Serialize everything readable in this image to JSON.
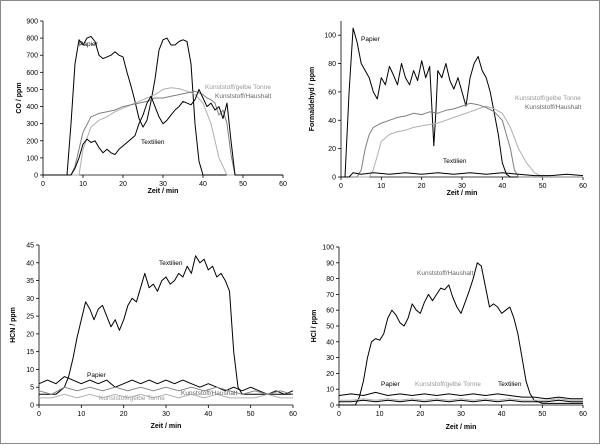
{
  "chart_data": [
    {
      "type": "line",
      "xlabel": "Zeit / min",
      "ylabel": "CO / ppm",
      "xlim": [
        0,
        60
      ],
      "ylim": [
        0,
        900
      ],
      "xticks": [
        0,
        10,
        20,
        30,
        40,
        50,
        60
      ],
      "yticks": [
        0,
        100,
        200,
        300,
        400,
        500,
        600,
        700,
        800,
        900
      ],
      "series": [
        {
          "name": "Papier",
          "color": "#000000",
          "x": [
            0,
            6,
            7,
            8,
            9,
            10,
            11,
            12,
            13,
            14,
            15,
            16,
            17,
            18,
            19,
            20,
            21,
            22,
            23,
            24,
            25,
            26,
            27,
            28,
            29,
            30,
            31,
            32,
            33,
            34,
            35,
            36,
            37,
            38,
            39,
            40,
            60
          ],
          "y": [
            0,
            0,
            300,
            650,
            790,
            760,
            800,
            810,
            780,
            700,
            680,
            690,
            700,
            720,
            700,
            690,
            600,
            520,
            430,
            330,
            280,
            320,
            430,
            560,
            730,
            790,
            800,
            760,
            760,
            780,
            790,
            780,
            650,
            300,
            80,
            0,
            0
          ]
        },
        {
          "name": "Kunststoff/gelbe Tonne",
          "color": "#b0b0b0",
          "x": [
            0,
            9,
            10,
            12,
            14,
            16,
            18,
            20,
            22,
            24,
            26,
            28,
            30,
            32,
            34,
            36,
            38,
            40,
            42,
            44,
            46,
            60
          ],
          "y": [
            0,
            0,
            150,
            280,
            320,
            340,
            370,
            390,
            410,
            430,
            450,
            470,
            500,
            510,
            505,
            490,
            470,
            420,
            300,
            100,
            0,
            0
          ]
        },
        {
          "name": "Kunststoff/Haushalt",
          "color": "#7f7f7f",
          "x": [
            0,
            7,
            8,
            9,
            10,
            12,
            14,
            16,
            18,
            20,
            22,
            24,
            26,
            28,
            30,
            32,
            34,
            36,
            38,
            40,
            41,
            42,
            43,
            44,
            45,
            46,
            47,
            48,
            60
          ],
          "y": [
            0,
            0,
            50,
            150,
            250,
            340,
            360,
            370,
            380,
            400,
            410,
            420,
            430,
            450,
            450,
            460,
            470,
            480,
            490,
            470,
            450,
            440,
            420,
            350,
            380,
            300,
            120,
            0,
            0
          ]
        },
        {
          "name": "Textilien",
          "color": "#000000",
          "x": [
            0,
            7,
            8,
            9,
            10,
            11,
            12,
            13,
            14,
            15,
            16,
            17,
            18,
            19,
            20,
            21,
            22,
            23,
            24,
            25,
            26,
            27,
            28,
            29,
            30,
            31,
            32,
            33,
            34,
            35,
            36,
            37,
            38,
            39,
            40,
            41,
            42,
            43,
            44,
            45,
            46,
            47,
            48,
            60
          ],
          "y": [
            0,
            0,
            40,
            100,
            180,
            210,
            190,
            200,
            160,
            130,
            150,
            130,
            120,
            150,
            170,
            190,
            210,
            230,
            300,
            350,
            420,
            460,
            400,
            340,
            300,
            320,
            350,
            380,
            400,
            430,
            420,
            410,
            440,
            500,
            450,
            400,
            420,
            380,
            400,
            330,
            420,
            200,
            0,
            0
          ]
        }
      ],
      "annotations": [
        "Papier",
        "Kunststoff/gelbe Tonne",
        "Kunststoff/Haushalt",
        "Textilien"
      ]
    },
    {
      "type": "line",
      "xlabel": "Zeit / min",
      "ylabel": "Formaldehyd / ppm",
      "xlim": [
        0,
        60
      ],
      "ylim": [
        0,
        110
      ],
      "xticks": [
        0,
        10,
        20,
        30,
        40,
        50,
        60
      ],
      "yticks": [
        0,
        20,
        40,
        60,
        80,
        100
      ],
      "series": [
        {
          "name": "Papier",
          "color": "#000000",
          "x": [
            0,
            1,
            2,
            3,
            4,
            5,
            6,
            7,
            8,
            9,
            10,
            11,
            12,
            13,
            14,
            15,
            16,
            17,
            18,
            19,
            20,
            21,
            22,
            22.5,
            23,
            23.5,
            24,
            25,
            26,
            27,
            28,
            29,
            30,
            31,
            32,
            33,
            34,
            35,
            36,
            37,
            38,
            39,
            40,
            41,
            42,
            60
          ],
          "y": [
            0,
            0,
            60,
            105,
            95,
            80,
            75,
            70,
            60,
            55,
            70,
            65,
            78,
            72,
            65,
            80,
            70,
            65,
            75,
            68,
            82,
            70,
            78,
            50,
            22,
            45,
            75,
            70,
            80,
            68,
            62,
            70,
            60,
            50,
            70,
            80,
            85,
            75,
            70,
            60,
            45,
            30,
            10,
            2,
            0,
            0
          ]
        },
        {
          "name": "Kunststoff/gelbe Tonne",
          "color": "#b0b0b0",
          "x": [
            0,
            7,
            8,
            9,
            10,
            12,
            14,
            16,
            18,
            20,
            22,
            24,
            26,
            28,
            30,
            32,
            34,
            36,
            38,
            40,
            42,
            44,
            46,
            48,
            50,
            52,
            60
          ],
          "y": [
            0,
            0,
            5,
            15,
            25,
            30,
            32,
            33,
            35,
            36,
            37,
            38,
            40,
            42,
            44,
            46,
            48,
            50,
            48,
            45,
            35,
            20,
            10,
            3,
            0,
            0,
            0
          ]
        },
        {
          "name": "Kunststoff/Haushalt",
          "color": "#7f7f7f",
          "x": [
            0,
            4,
            5,
            6,
            7,
            8,
            10,
            12,
            14,
            16,
            18,
            20,
            22,
            24,
            26,
            28,
            30,
            32,
            34,
            36,
            38,
            40,
            42,
            43,
            44,
            45,
            60
          ],
          "y": [
            0,
            0,
            5,
            20,
            30,
            35,
            38,
            40,
            42,
            43,
            45,
            44,
            46,
            45,
            47,
            48,
            50,
            52,
            51,
            49,
            46,
            40,
            20,
            5,
            0,
            0,
            0
          ]
        },
        {
          "name": "Textilien",
          "color": "#000000",
          "x": [
            0,
            2,
            3,
            5,
            8,
            12,
            16,
            20,
            24,
            28,
            32,
            36,
            40,
            44,
            48,
            52,
            56,
            60
          ],
          "y": [
            0,
            0,
            3,
            2,
            3,
            2,
            3,
            2,
            3,
            2,
            3,
            2,
            3,
            2,
            1,
            1,
            2,
            1
          ]
        }
      ],
      "annotations": [
        "Papier",
        "Kunststoff/gelbe Tonne",
        "Kunststoff/Haushalt",
        "Textilien"
      ]
    },
    {
      "type": "line",
      "xlabel": "Zeit / min",
      "ylabel": "HCN / ppm",
      "xlim": [
        0,
        60
      ],
      "ylim": [
        0,
        45
      ],
      "xticks": [
        0,
        10,
        20,
        30,
        40,
        50,
        60
      ],
      "yticks": [
        0,
        5,
        10,
        15,
        20,
        25,
        30,
        35,
        40,
        45
      ],
      "series": [
        {
          "name": "Textilien",
          "color": "#000000",
          "x": [
            0,
            4,
            5,
            6,
            7,
            8,
            9,
            10,
            11,
            12,
            13,
            14,
            15,
            16,
            17,
            18,
            19,
            20,
            21,
            22,
            23,
            24,
            25,
            26,
            27,
            28,
            29,
            30,
            31,
            32,
            33,
            34,
            35,
            36,
            37,
            38,
            39,
            40,
            41,
            42,
            43,
            44,
            45,
            46,
            47,
            48,
            60
          ],
          "y": [
            3,
            3,
            4,
            5,
            8,
            13,
            19,
            24,
            29,
            27,
            24,
            27,
            28,
            25,
            22,
            24,
            21,
            24,
            28,
            30,
            29,
            33,
            37,
            33,
            34,
            32,
            35,
            36,
            34,
            35,
            37,
            36,
            39,
            37,
            42,
            40,
            41,
            38,
            39,
            36,
            37,
            35,
            32,
            15,
            5,
            3,
            3
          ]
        },
        {
          "name": "Papier",
          "color": "#000000",
          "x": [
            0,
            2,
            4,
            6,
            8,
            10,
            12,
            14,
            16,
            18,
            20,
            22,
            24,
            26,
            28,
            30,
            32,
            34,
            36,
            38,
            40,
            42,
            44,
            46,
            48,
            50,
            52,
            54,
            56,
            58,
            60
          ],
          "y": [
            6,
            7,
            6,
            8,
            7,
            6,
            7,
            6,
            7,
            5,
            6,
            7,
            6,
            7,
            6,
            7,
            6,
            7,
            6,
            5,
            6,
            5,
            4,
            5,
            4,
            5,
            4,
            3,
            4,
            3,
            4
          ]
        },
        {
          "name": "Kunststoff/gelbe Tonne",
          "color": "#b0b0b0",
          "x": [
            0,
            3,
            6,
            9,
            12,
            15,
            18,
            21,
            24,
            27,
            30,
            33,
            36,
            39,
            42,
            45,
            48,
            51,
            54,
            57,
            60
          ],
          "y": [
            2,
            2,
            3,
            2,
            3,
            2,
            3,
            2,
            3,
            2,
            3,
            2,
            3,
            2,
            3,
            2,
            2,
            2,
            3,
            2,
            2
          ]
        },
        {
          "name": "Kunststoff/Haushalt",
          "color": "#7f7f7f",
          "x": [
            0,
            3,
            6,
            9,
            12,
            15,
            18,
            21,
            24,
            27,
            30,
            33,
            36,
            39,
            42,
            45,
            48,
            51,
            54,
            57,
            60
          ],
          "y": [
            4,
            3,
            5,
            4,
            5,
            4,
            5,
            4,
            5,
            4,
            5,
            4,
            5,
            4,
            5,
            4,
            3,
            4,
            3,
            4,
            3
          ]
        }
      ],
      "annotations": [
        "Textilien",
        "Papier",
        "Kunststoff/gelbe Tonne",
        "Kunststoff/Haushalt"
      ]
    },
    {
      "type": "line",
      "xlabel": "Zeit / min",
      "ylabel": "HCl / ppm",
      "xlim": [
        0,
        60
      ],
      "ylim": [
        0,
        100
      ],
      "xticks": [
        0,
        10,
        20,
        30,
        40,
        50,
        60
      ],
      "yticks": [
        0,
        10,
        20,
        30,
        40,
        50,
        60,
        70,
        80,
        90,
        100
      ],
      "series": [
        {
          "name": "Kunststoff/Haushalt",
          "color": "#000000",
          "x": [
            0,
            4,
            5,
            6,
            7,
            8,
            9,
            10,
            11,
            12,
            13,
            14,
            15,
            16,
            17,
            18,
            19,
            20,
            21,
            22,
            23,
            24,
            25,
            26,
            27,
            28,
            29,
            30,
            31,
            32,
            33,
            34,
            35,
            36,
            37,
            38,
            39,
            40,
            41,
            42,
            43,
            44,
            45,
            46,
            47,
            48,
            49,
            50,
            60
          ],
          "y": [
            0,
            0,
            5,
            15,
            30,
            40,
            42,
            41,
            45,
            55,
            60,
            57,
            52,
            50,
            55,
            64,
            60,
            58,
            65,
            70,
            66,
            70,
            74,
            73,
            76,
            68,
            62,
            58,
            65,
            72,
            80,
            90,
            88,
            75,
            62,
            64,
            62,
            58,
            60,
            62,
            55,
            45,
            30,
            15,
            7,
            3,
            2,
            1,
            1
          ]
        },
        {
          "name": "Papier",
          "color": "#000000",
          "x": [
            0,
            3,
            6,
            9,
            12,
            15,
            18,
            21,
            24,
            27,
            30,
            33,
            36,
            39,
            42,
            45,
            48,
            51,
            54,
            57,
            60
          ],
          "y": [
            6,
            7,
            6,
            8,
            6,
            7,
            6,
            7,
            6,
            7,
            6,
            7,
            6,
            7,
            6,
            5,
            5,
            4,
            5,
            4,
            4
          ]
        },
        {
          "name": "Kunststoff/gelbe Tonne",
          "color": "#b0b0b0",
          "x": [
            0,
            3,
            6,
            9,
            12,
            15,
            18,
            21,
            24,
            27,
            30,
            33,
            36,
            39,
            42,
            45,
            48,
            51,
            54,
            57,
            60
          ],
          "y": [
            3,
            3,
            4,
            3,
            4,
            3,
            4,
            3,
            4,
            3,
            4,
            3,
            4,
            3,
            4,
            3,
            3,
            3,
            4,
            3,
            3
          ]
        },
        {
          "name": "Textilien",
          "color": "#000000",
          "x": [
            0,
            3,
            6,
            9,
            12,
            15,
            18,
            21,
            24,
            27,
            30,
            33,
            36,
            39,
            42,
            45,
            48,
            51,
            54,
            57,
            60
          ],
          "y": [
            2,
            2,
            3,
            2,
            3,
            2,
            3,
            2,
            3,
            2,
            3,
            2,
            3,
            2,
            3,
            2,
            2,
            2,
            3,
            2,
            2
          ]
        }
      ],
      "annotations": [
        "Kunststoff/Haushalt",
        "Papier",
        "Kunststoff/gelbe Tonne",
        "Textilien"
      ]
    }
  ]
}
